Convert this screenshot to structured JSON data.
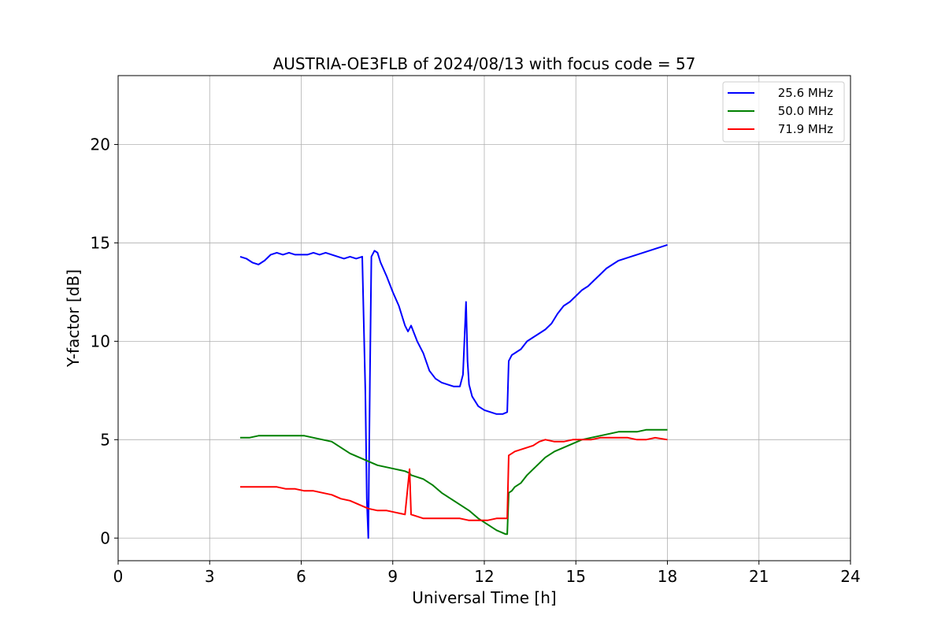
{
  "chart_data": {
    "type": "line",
    "title": "AUSTRIA-OE3FLB of 2024/08/13 with focus code = 57",
    "xlabel": "Universal Time [h]",
    "ylabel": "Y-factor [dB]",
    "xlim": [
      0,
      24
    ],
    "ylim": [
      -1.15,
      23.5
    ],
    "xticks": [
      0,
      3,
      6,
      9,
      12,
      15,
      18,
      21,
      24
    ],
    "yticks": [
      0,
      5,
      10,
      15,
      20
    ],
    "grid": true,
    "legend_position": "top-right",
    "series": [
      {
        "name": "25.6 MHz",
        "color": "#0000ff",
        "x": [
          4.0,
          4.2,
          4.4,
          4.6,
          4.8,
          5.0,
          5.2,
          5.4,
          5.6,
          5.8,
          6.0,
          6.2,
          6.4,
          6.6,
          6.8,
          7.0,
          7.2,
          7.4,
          7.6,
          7.8,
          8.0,
          8.1,
          8.15,
          8.2,
          8.25,
          8.3,
          8.4,
          8.5,
          8.6,
          8.8,
          9.0,
          9.2,
          9.4,
          9.5,
          9.6,
          9.8,
          10.0,
          10.2,
          10.4,
          10.6,
          10.8,
          11.0,
          11.2,
          11.3,
          11.4,
          11.45,
          11.5,
          11.6,
          11.8,
          12.0,
          12.2,
          12.4,
          12.6,
          12.75,
          12.8,
          12.9,
          13.0,
          13.2,
          13.4,
          13.6,
          13.8,
          14.0,
          14.2,
          14.4,
          14.6,
          14.8,
          15.0,
          15.2,
          15.4,
          15.6,
          15.8,
          16.0,
          16.2,
          16.4,
          16.6,
          16.8,
          17.0,
          17.2,
          17.4,
          17.6,
          17.8,
          18.0
        ],
        "values": [
          14.3,
          14.2,
          14.0,
          13.9,
          14.1,
          14.4,
          14.5,
          14.4,
          14.5,
          14.4,
          14.4,
          14.4,
          14.5,
          14.4,
          14.5,
          14.4,
          14.3,
          14.2,
          14.3,
          14.2,
          14.3,
          7.5,
          2.0,
          0.0,
          8.0,
          14.3,
          14.6,
          14.5,
          14.0,
          13.3,
          12.5,
          11.8,
          10.8,
          10.5,
          10.8,
          10.0,
          9.4,
          8.5,
          8.1,
          7.9,
          7.8,
          7.7,
          7.7,
          8.3,
          12.0,
          9.0,
          7.8,
          7.2,
          6.7,
          6.5,
          6.4,
          6.3,
          6.3,
          6.4,
          9.0,
          9.3,
          9.4,
          9.6,
          10.0,
          10.2,
          10.4,
          10.6,
          10.9,
          11.4,
          11.8,
          12.0,
          12.3,
          12.6,
          12.8,
          13.1,
          13.4,
          13.7,
          13.9,
          14.1,
          14.2,
          14.3,
          14.4,
          14.5,
          14.6,
          14.7,
          14.8,
          14.9
        ]
      },
      {
        "name": "50.0 MHz",
        "color": "#008000",
        "x": [
          4.0,
          4.3,
          4.6,
          4.9,
          5.2,
          5.5,
          5.8,
          6.1,
          6.4,
          6.7,
          7.0,
          7.3,
          7.6,
          7.9,
          8.2,
          8.5,
          8.8,
          9.1,
          9.4,
          9.55,
          9.6,
          9.8,
          10.0,
          10.3,
          10.6,
          10.9,
          11.2,
          11.5,
          11.8,
          12.1,
          12.4,
          12.7,
          12.75,
          12.8,
          12.9,
          13.0,
          13.2,
          13.4,
          13.6,
          13.8,
          14.0,
          14.3,
          14.6,
          14.9,
          15.2,
          15.5,
          15.8,
          16.1,
          16.4,
          16.7,
          17.0,
          17.3,
          17.6,
          18.0
        ],
        "values": [
          5.1,
          5.1,
          5.2,
          5.2,
          5.2,
          5.2,
          5.2,
          5.2,
          5.1,
          5.0,
          4.9,
          4.6,
          4.3,
          4.1,
          3.9,
          3.7,
          3.6,
          3.5,
          3.4,
          3.3,
          3.2,
          3.1,
          3.0,
          2.7,
          2.3,
          2.0,
          1.7,
          1.4,
          1.0,
          0.7,
          0.4,
          0.2,
          0.2,
          2.3,
          2.4,
          2.6,
          2.8,
          3.2,
          3.5,
          3.8,
          4.1,
          4.4,
          4.6,
          4.8,
          5.0,
          5.1,
          5.2,
          5.3,
          5.4,
          5.4,
          5.4,
          5.5,
          5.5,
          5.5
        ]
      },
      {
        "name": "71.9 MHz",
        "color": "#ff0000",
        "x": [
          4.0,
          4.3,
          4.6,
          4.9,
          5.2,
          5.5,
          5.8,
          6.1,
          6.4,
          6.7,
          7.0,
          7.3,
          7.6,
          7.9,
          8.2,
          8.5,
          8.8,
          9.1,
          9.4,
          9.55,
          9.6,
          9.8,
          10.0,
          10.3,
          10.6,
          10.9,
          11.2,
          11.5,
          11.8,
          12.1,
          12.4,
          12.7,
          12.75,
          12.8,
          12.9,
          13.0,
          13.2,
          13.4,
          13.6,
          13.8,
          14.0,
          14.3,
          14.6,
          14.9,
          15.2,
          15.5,
          15.8,
          16.1,
          16.4,
          16.7,
          17.0,
          17.3,
          17.6,
          18.0
        ],
        "values": [
          2.6,
          2.6,
          2.6,
          2.6,
          2.6,
          2.5,
          2.5,
          2.4,
          2.4,
          2.3,
          2.2,
          2.0,
          1.9,
          1.7,
          1.5,
          1.4,
          1.4,
          1.3,
          1.2,
          3.5,
          1.2,
          1.1,
          1.0,
          1.0,
          1.0,
          1.0,
          1.0,
          0.9,
          0.9,
          0.9,
          1.0,
          1.0,
          1.0,
          4.2,
          4.3,
          4.4,
          4.5,
          4.6,
          4.7,
          4.9,
          5.0,
          4.9,
          4.9,
          5.0,
          5.0,
          5.0,
          5.1,
          5.1,
          5.1,
          5.1,
          5.0,
          5.0,
          5.1,
          5.0
        ]
      }
    ]
  }
}
